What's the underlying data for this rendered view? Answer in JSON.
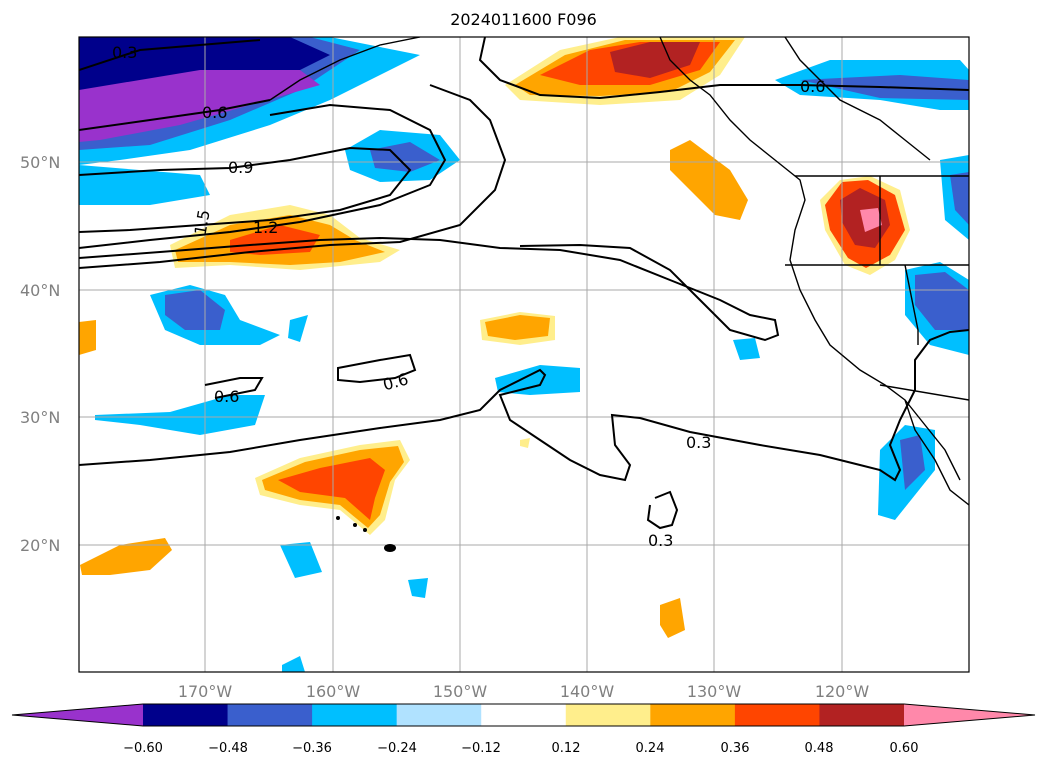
{
  "title": "2024011600 F096",
  "map": {
    "lat_labels": [
      "50°N",
      "40°N",
      "30°N",
      "20°N"
    ],
    "lon_labels": [
      "170°W",
      "160°W",
      "150°W",
      "140°W",
      "130°W",
      "120°W"
    ],
    "contour_labels": [
      "0.3",
      "0.6",
      "0.9",
      "1.2",
      "1.5",
      "0.6",
      "0.6",
      "0.6",
      "0.3",
      "0.3"
    ]
  },
  "colorbar": {
    "ticks": [
      "−0.60",
      "−0.48",
      "−0.36",
      "−0.24",
      "−0.12",
      "0.12",
      "0.24",
      "0.36",
      "0.48",
      "0.60"
    ],
    "colors": [
      "#9932cc",
      "#00008b",
      "#3a5fcd",
      "#00bfff",
      "#b0e2ff",
      "#ffffff",
      "#ffee8c",
      "#ffa500",
      "#ff4500",
      "#b22222",
      "#ff88aa"
    ]
  },
  "palette": {
    "purple": "#9932cc",
    "navy": "#00008b",
    "royal": "#3a5fcd",
    "sky": "#00bfff",
    "pale_blue": "#b0e2ff",
    "pale_yellow": "#ffee8c",
    "orange": "#ffa500",
    "red_orange": "#ff4500",
    "firebrick": "#b22222",
    "pink": "#ff88aa"
  }
}
